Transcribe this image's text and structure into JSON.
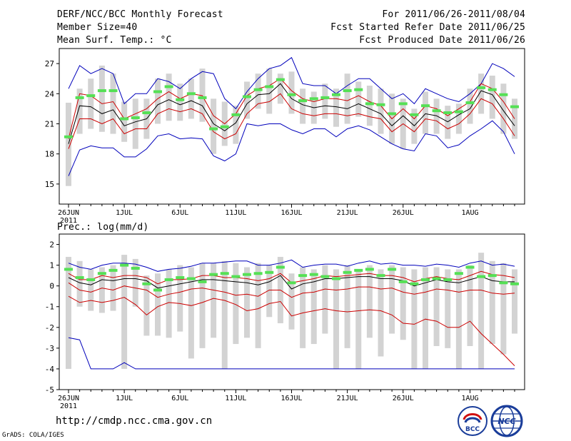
{
  "header": {
    "title": "DERF/NCC/BCC Monthly Forecast",
    "member_size": "Member Size=40",
    "variable_top": "Mean Surf. Temp.: °C",
    "date_range": "For 2011/06/26-2011/08/04",
    "started": "Fcst Started Refer Date 2011/06/25",
    "produced": "Fcst Produced Date 2011/06/26"
  },
  "footer": {
    "url": "http://cmdp.ncc.cma.gov.cn",
    "credit": "GrADS: COLA/IGES",
    "logo_bcc": "BCC",
    "logo_ncc": "NCC"
  },
  "colors": {
    "box": "#d3d3d3",
    "clim": "#55e055",
    "mean": "#000000",
    "spread": "#cc0000",
    "envelope": "#0000bb"
  },
  "chart_data": [
    {
      "type": "line",
      "name": "temperature",
      "ylabel": "Mean Surf. Temp.: °C",
      "ylim": [
        13,
        28.5
      ],
      "yticks": [
        15,
        18,
        21,
        24,
        27
      ],
      "xlim": [
        0,
        40
      ],
      "x_ticks": [
        {
          "day": 0,
          "label": "26JUN",
          "sub": "2011"
        },
        {
          "day": 5,
          "label": "1JUL"
        },
        {
          "day": 10,
          "label": "6JUL"
        },
        {
          "day": 15,
          "label": "11JUL"
        },
        {
          "day": 20,
          "label": "16JUL"
        },
        {
          "day": 25,
          "label": "21JUL"
        },
        {
          "day": 30,
          "label": "26JUL"
        },
        {
          "day": 36,
          "label": "1AUG"
        }
      ],
      "series": [
        {
          "name": "max",
          "role": "envelope",
          "values": [
            24.5,
            26.8,
            26.0,
            26.5,
            26.0,
            23.0,
            24.0,
            24.0,
            25.5,
            25.2,
            24.5,
            25.5,
            26.2,
            26.0,
            23.5,
            22.5,
            24.2,
            25.5,
            26.5,
            26.8,
            27.6,
            25.0,
            24.8,
            24.8,
            24.0,
            24.8,
            25.5,
            25.5,
            24.5,
            23.5,
            24.0,
            23.0,
            24.5,
            24.0,
            23.5,
            23.2,
            24.0,
            25.0,
            27.0,
            26.5,
            25.7
          ]
        },
        {
          "name": "upper",
          "role": "spread",
          "values": [
            19.5,
            24.0,
            23.8,
            23.0,
            23.2,
            21.5,
            22.0,
            22.5,
            23.5,
            24.2,
            23.5,
            24.0,
            23.8,
            21.8,
            21.0,
            22.0,
            23.8,
            24.5,
            24.8,
            25.5,
            24.3,
            23.5,
            23.2,
            23.5,
            23.5,
            23.3,
            23.8,
            23.2,
            22.8,
            21.5,
            22.5,
            21.5,
            22.8,
            22.5,
            21.8,
            22.5,
            23.2,
            25.0,
            24.5,
            23.2,
            21.5
          ]
        },
        {
          "name": "mean",
          "role": "mean",
          "values": [
            19.0,
            22.8,
            22.7,
            22.0,
            22.4,
            20.8,
            21.2,
            21.5,
            22.9,
            23.4,
            22.9,
            23.3,
            22.8,
            21.0,
            20.3,
            21.1,
            23.0,
            23.9,
            24.0,
            25.0,
            23.5,
            22.9,
            22.6,
            22.8,
            22.7,
            22.5,
            23.0,
            22.5,
            22.0,
            20.8,
            21.8,
            20.8,
            22.0,
            21.8,
            21.2,
            21.9,
            22.5,
            24.3,
            23.9,
            22.3,
            20.8
          ]
        },
        {
          "name": "lower",
          "role": "spread",
          "values": [
            18.5,
            21.5,
            21.5,
            21.0,
            21.5,
            20.0,
            20.5,
            20.5,
            22.0,
            22.5,
            22.2,
            22.5,
            22.0,
            20.2,
            19.5,
            20.0,
            22.0,
            23.0,
            23.2,
            24.0,
            22.5,
            22.0,
            21.8,
            22.0,
            22.0,
            21.8,
            22.0,
            21.7,
            21.5,
            20.2,
            21.0,
            20.2,
            21.5,
            21.3,
            20.5,
            21.0,
            22.0,
            23.5,
            23.0,
            21.5,
            19.8
          ]
        },
        {
          "name": "min",
          "role": "envelope",
          "values": [
            15.8,
            18.4,
            18.8,
            18.6,
            18.6,
            17.7,
            17.7,
            18.5,
            19.8,
            20.0,
            19.5,
            19.6,
            19.5,
            17.8,
            17.3,
            18.0,
            21.0,
            20.8,
            21.0,
            21.0,
            20.4,
            20.0,
            20.5,
            20.5,
            19.7,
            20.5,
            20.8,
            20.4,
            19.7,
            19.0,
            18.5,
            18.3,
            20.0,
            19.8,
            18.6,
            18.9,
            19.8,
            20.5,
            21.3,
            20.2,
            18.0
          ]
        }
      ],
      "climatology": [
        19.7,
        23.6,
        23.8,
        24.3,
        24.3,
        21.5,
        21.6,
        22.1,
        24.2,
        24.7,
        23.4,
        24.0,
        23.6,
        20.5,
        20.7,
        21.9,
        23.7,
        24.4,
        24.7,
        25.4,
        23.9,
        23.3,
        23.5,
        23.6,
        23.9,
        24.3,
        24.4,
        23.0,
        22.9,
        22.0,
        23.0,
        21.9,
        22.8,
        22.3,
        22.1,
        22.2,
        23.1,
        24.6,
        24.4,
        23.9,
        22.7
      ],
      "boxes": [
        [
          14.8,
          23.1
        ],
        [
          20.0,
          24.5
        ],
        [
          20.5,
          25.5
        ],
        [
          20.2,
          26.8
        ],
        [
          20.0,
          26.0
        ],
        [
          19.2,
          23.2
        ],
        [
          18.5,
          23.5
        ],
        [
          19.5,
          23.5
        ],
        [
          21.0,
          25.5
        ],
        [
          21.3,
          26.0
        ],
        [
          21.3,
          25.0
        ],
        [
          21.5,
          25.5
        ],
        [
          21.2,
          26.5
        ],
        [
          18.0,
          23.5
        ],
        [
          18.8,
          23.2
        ],
        [
          19.0,
          22.8
        ],
        [
          21.5,
          25.2
        ],
        [
          22.5,
          26.0
        ],
        [
          22.0,
          26.5
        ],
        [
          23.0,
          26.0
        ],
        [
          22.0,
          26.2
        ],
        [
          21.0,
          24.5
        ],
        [
          21.0,
          24.2
        ],
        [
          21.5,
          25.0
        ],
        [
          20.7,
          24.5
        ],
        [
          21.0,
          26.0
        ],
        [
          21.7,
          25.2
        ],
        [
          20.8,
          24.8
        ],
        [
          20.0,
          24.5
        ],
        [
          19.0,
          24.0
        ],
        [
          18.5,
          23.5
        ],
        [
          19.0,
          22.5
        ],
        [
          20.0,
          24.2
        ],
        [
          20.0,
          23.5
        ],
        [
          19.5,
          22.8
        ],
        [
          20.0,
          23.0
        ],
        [
          21.0,
          24.5
        ],
        [
          22.0,
          26.0
        ],
        [
          21.5,
          25.8
        ],
        [
          20.0,
          25.0
        ],
        [
          19.5,
          23.5
        ]
      ]
    },
    {
      "type": "line",
      "name": "precipitation",
      "ylabel": "Prec.: log(mm/d)",
      "ylim": [
        -5,
        2.5
      ],
      "yticks": [
        -5,
        -4,
        -3,
        -2,
        -1,
        0,
        1,
        2
      ],
      "xlim": [
        0,
        40
      ],
      "x_ticks": [
        {
          "day": 0,
          "label": "26JUN",
          "sub": "2011"
        },
        {
          "day": 5,
          "label": "1JUL"
        },
        {
          "day": 10,
          "label": "6JUL"
        },
        {
          "day": 15,
          "label": "11JUL"
        },
        {
          "day": 20,
          "label": "16JUL"
        },
        {
          "day": 25,
          "label": "21JUL"
        },
        {
          "day": 30,
          "label": "26JUL"
        },
        {
          "day": 36,
          "label": "1AUG"
        }
      ],
      "series": [
        {
          "name": "max",
          "role": "envelope",
          "values": [
            1.1,
            0.9,
            0.8,
            1.0,
            1.1,
            1.1,
            1.05,
            0.9,
            0.7,
            0.8,
            0.85,
            0.95,
            1.1,
            1.1,
            1.15,
            1.2,
            1.2,
            1.0,
            1.0,
            1.1,
            1.25,
            0.9,
            1.0,
            1.05,
            1.05,
            0.95,
            1.1,
            1.2,
            1.05,
            1.1,
            1.0,
            1.0,
            0.95,
            1.05,
            1.0,
            0.9,
            1.1,
            1.2,
            1.0,
            1.05,
            0.95
          ]
        },
        {
          "name": "upper",
          "role": "spread",
          "values": [
            0.6,
            0.3,
            0.3,
            0.5,
            0.4,
            0.5,
            0.5,
            0.4,
            0.1,
            0.3,
            0.3,
            0.35,
            0.5,
            0.5,
            0.4,
            0.4,
            0.35,
            0.25,
            0.35,
            0.6,
            0.15,
            0.25,
            0.35,
            0.5,
            0.45,
            0.5,
            0.55,
            0.6,
            0.5,
            0.5,
            0.4,
            0.2,
            0.35,
            0.45,
            0.35,
            0.3,
            0.5,
            0.7,
            0.55,
            0.5,
            0.4
          ]
        },
        {
          "name": "mean",
          "role": "mean",
          "values": [
            0.4,
            0.15,
            0.05,
            0.3,
            0.25,
            0.35,
            0.35,
            0.25,
            -0.1,
            0.0,
            0.1,
            0.2,
            0.3,
            0.3,
            0.25,
            0.2,
            0.15,
            0.05,
            0.2,
            0.5,
            -0.15,
            0.1,
            0.2,
            0.35,
            0.35,
            0.4,
            0.45,
            0.45,
            0.35,
            0.35,
            0.25,
            0.0,
            0.15,
            0.3,
            0.2,
            0.15,
            0.3,
            0.45,
            0.25,
            0.2,
            0.2
          ]
        },
        {
          "name": "lower",
          "role": "spread",
          "values": [
            0.15,
            -0.2,
            -0.3,
            -0.1,
            -0.2,
            0.0,
            -0.1,
            -0.2,
            -0.55,
            -0.4,
            -0.3,
            -0.15,
            -0.1,
            -0.2,
            -0.3,
            -0.45,
            -0.4,
            -0.5,
            -0.2,
            -0.2,
            -0.55,
            -0.35,
            -0.3,
            -0.15,
            -0.2,
            -0.15,
            -0.05,
            -0.05,
            -0.15,
            -0.1,
            -0.3,
            -0.4,
            -0.3,
            -0.15,
            -0.2,
            -0.3,
            -0.2,
            -0.2,
            -0.35,
            -0.4,
            -0.35
          ]
        },
        {
          "name": "lower2",
          "role": "spread",
          "values": [
            -0.5,
            -0.8,
            -0.7,
            -0.8,
            -0.7,
            -0.55,
            -0.9,
            -1.4,
            -1.0,
            -0.8,
            -0.85,
            -0.95,
            -0.8,
            -0.6,
            -0.7,
            -0.9,
            -1.2,
            -1.1,
            -0.85,
            -0.75,
            -1.45,
            -1.3,
            -1.2,
            -1.1,
            -1.2,
            -1.25,
            -1.2,
            -1.15,
            -1.2,
            -1.4,
            -1.8,
            -1.85,
            -1.6,
            -1.7,
            -2.0,
            -2.0,
            -1.7,
            -2.3,
            -2.8,
            -3.3,
            -3.85
          ]
        },
        {
          "name": "min",
          "role": "envelope",
          "values": [
            -2.5,
            -2.6,
            -4.0,
            -4.0,
            -4.0,
            -3.7,
            -4.0,
            -4.0,
            -4.0,
            -4.0,
            -4.0,
            -4.0,
            -4.0,
            -4.0,
            -4.0,
            -4.0,
            -4.0,
            -4.0,
            -4.0,
            -4.0,
            -4.0,
            -4.0,
            -4.0,
            -4.0,
            -4.0,
            -4.0,
            -4.0,
            -4.0,
            -4.0,
            -4.0,
            -4.0,
            -4.0,
            -4.0,
            -4.0,
            -4.0,
            -4.0,
            -4.0,
            -4.0,
            -4.0,
            -4.0,
            -4.0
          ]
        }
      ],
      "climatology": [
        0.8,
        0.4,
        0.3,
        0.6,
        0.75,
        1.0,
        0.85,
        0.1,
        -0.2,
        0.3,
        0.4,
        0.35,
        0.2,
        0.55,
        0.6,
        0.45,
        0.55,
        0.6,
        0.65,
        0.9,
        0.15,
        0.5,
        0.55,
        0.45,
        0.35,
        0.65,
        0.75,
        0.8,
        0.5,
        0.8,
        0.2,
        0.1,
        0.3,
        0.35,
        0.3,
        0.6,
        0.9,
        0.45,
        0.5,
        0.15,
        0.1
      ],
      "boxes": [
        [
          -4.0,
          1.4
        ],
        [
          -1.0,
          1.2
        ],
        [
          -1.2,
          0.8
        ],
        [
          -1.3,
          0.9
        ],
        [
          -1.2,
          1.0
        ],
        [
          -4.0,
          1.5
        ],
        [
          -1.0,
          1.3
        ],
        [
          -2.4,
          0.5
        ],
        [
          -2.4,
          0.6
        ],
        [
          -2.5,
          0.8
        ],
        [
          -2.2,
          1.0
        ],
        [
          -3.5,
          0.9
        ],
        [
          -3.0,
          1.1
        ],
        [
          -2.5,
          1.1
        ],
        [
          -4.0,
          1.2
        ],
        [
          -2.8,
          1.1
        ],
        [
          -2.5,
          0.9
        ],
        [
          -3.0,
          1.1
        ],
        [
          -1.5,
          1.0
        ],
        [
          -1.8,
          1.4
        ],
        [
          -2.1,
          0.6
        ],
        [
          -3.0,
          0.9
        ],
        [
          -2.8,
          0.8
        ],
        [
          -2.3,
          1.0
        ],
        [
          -4.0,
          0.8
        ],
        [
          -3.0,
          1.0
        ],
        [
          -4.0,
          0.8
        ],
        [
          -2.5,
          1.0
        ],
        [
          -3.4,
          0.8
        ],
        [
          -2.3,
          1.0
        ],
        [
          -2.6,
          0.9
        ],
        [
          -4.0,
          0.8
        ],
        [
          -4.0,
          0.9
        ],
        [
          -2.9,
          0.9
        ],
        [
          -3.0,
          0.8
        ],
        [
          -4.0,
          0.8
        ],
        [
          -2.9,
          1.0
        ],
        [
          -4.0,
          1.6
        ],
        [
          -2.8,
          1.2
        ],
        [
          -3.3,
          1.1
        ],
        [
          -2.3,
          0.8
        ]
      ]
    }
  ]
}
